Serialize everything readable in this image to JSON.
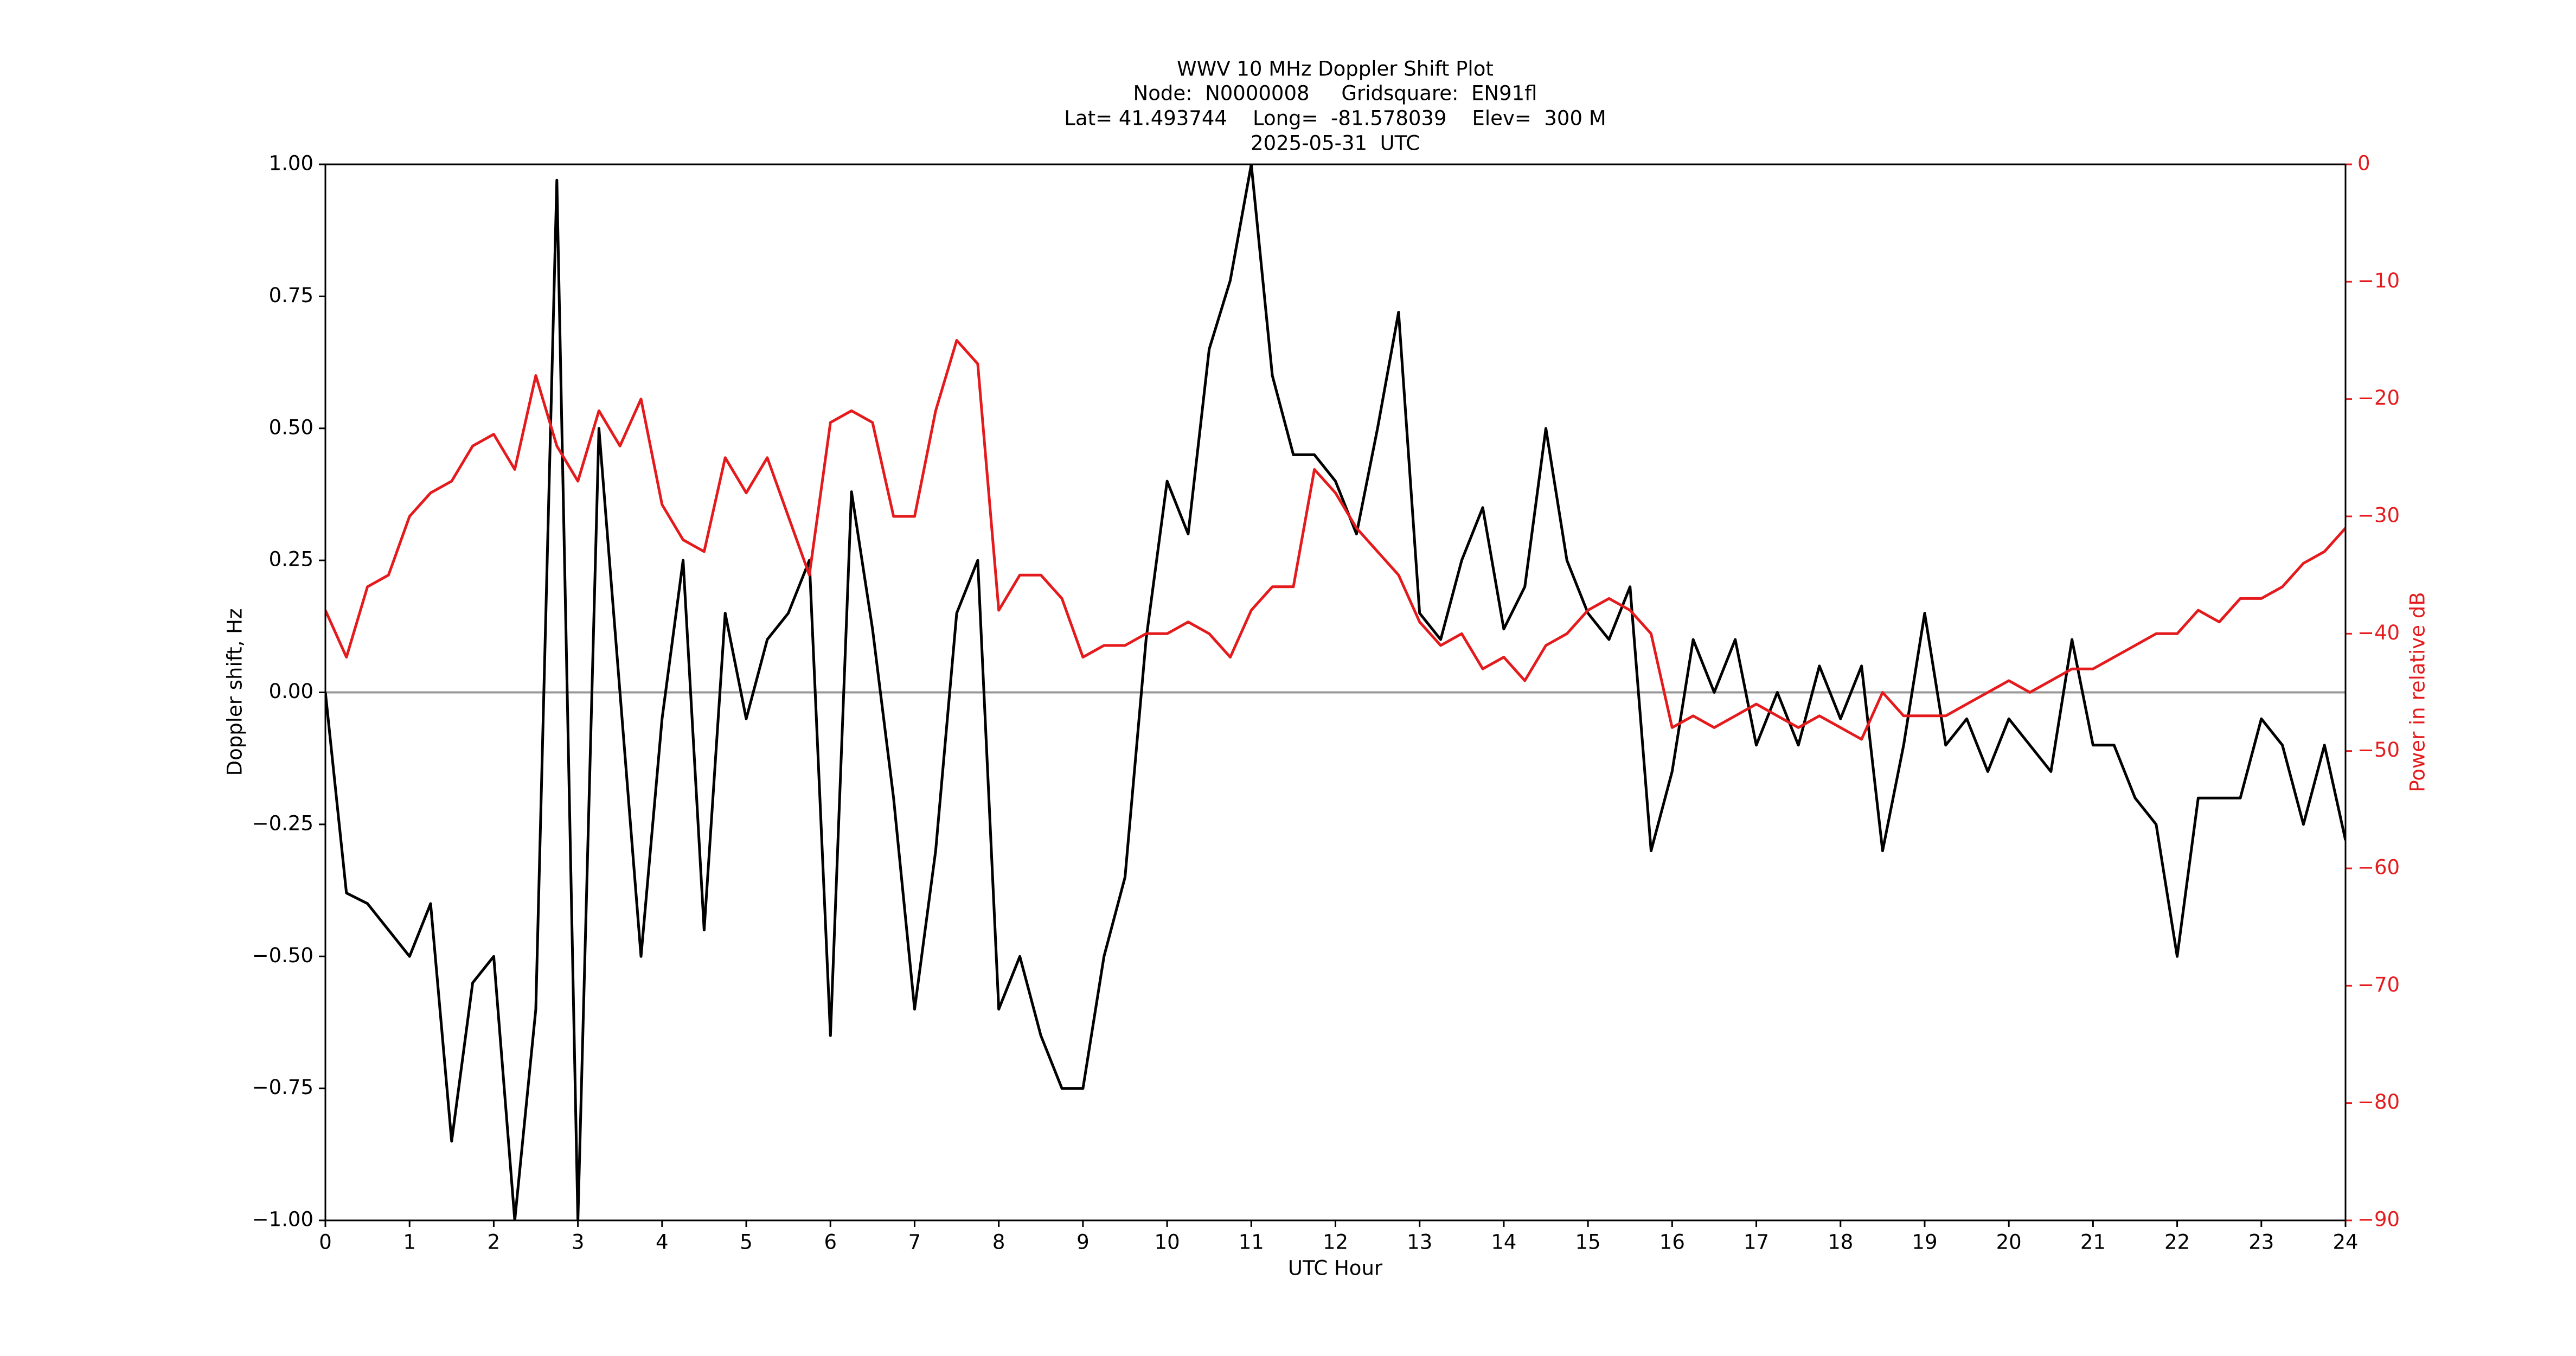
{
  "chart_data": {
    "type": "line",
    "title": [
      "WWV 10 MHz Doppler Shift Plot",
      "Node:  N0000008     Gridsquare:  EN91fl",
      "Lat= 41.493744    Long=  -81.578039    Elev=  300 M",
      "2025-05-31  UTC"
    ],
    "x_label": "UTC Hour",
    "y_label": "Doppler shift, Hz",
    "y2_label": "Power in relative dB",
    "x": [
      0,
      0.25,
      0.5,
      0.75,
      1,
      1.25,
      1.5,
      1.75,
      2,
      2.25,
      2.5,
      2.75,
      3,
      3.25,
      3.5,
      3.75,
      4,
      4.25,
      4.5,
      4.75,
      5,
      5.25,
      5.5,
      5.75,
      6,
      6.25,
      6.5,
      6.75,
      7,
      7.25,
      7.5,
      7.75,
      8,
      8.25,
      8.5,
      8.75,
      9,
      9.25,
      9.5,
      9.75,
      10,
      10.25,
      10.5,
      10.75,
      11,
      11.25,
      11.5,
      11.75,
      12,
      12.25,
      12.5,
      12.75,
      13,
      13.25,
      13.5,
      13.75,
      14,
      14.25,
      14.5,
      14.75,
      15,
      15.25,
      15.5,
      15.75,
      16,
      16.25,
      16.5,
      16.75,
      17,
      17.25,
      17.5,
      17.75,
      18,
      18.25,
      18.5,
      18.75,
      19,
      19.25,
      19.5,
      19.75,
      20,
      20.25,
      20.5,
      20.75,
      21,
      21.25,
      21.5,
      21.75,
      22,
      22.25,
      22.5,
      22.75,
      23,
      23.25,
      23.5,
      23.75,
      24
    ],
    "series": [
      {
        "name": "Doppler shift",
        "color": "#000000",
        "axis": "y",
        "values": [
          0.0,
          -0.38,
          -0.4,
          -0.45,
          -0.5,
          -0.4,
          -0.85,
          -0.55,
          -0.5,
          -1.0,
          -0.6,
          0.97,
          -1.0,
          0.5,
          0.0,
          -0.5,
          -0.05,
          0.25,
          -0.45,
          0.15,
          -0.05,
          0.1,
          0.15,
          0.25,
          -0.65,
          0.38,
          0.12,
          -0.2,
          -0.6,
          -0.3,
          0.15,
          0.25,
          -0.6,
          -0.5,
          -0.65,
          -0.75,
          -0.75,
          -0.5,
          -0.35,
          0.1,
          0.4,
          0.3,
          0.65,
          0.78,
          1.0,
          0.6,
          0.45,
          0.45,
          0.4,
          0.3,
          0.5,
          0.72,
          0.15,
          0.1,
          0.25,
          0.35,
          0.12,
          0.2,
          0.5,
          0.25,
          0.15,
          0.1,
          0.2,
          -0.3,
          -0.15,
          0.1,
          0.0,
          0.1,
          -0.1,
          0.0,
          -0.1,
          0.05,
          -0.05,
          0.05,
          -0.3,
          -0.1,
          0.15,
          -0.1,
          -0.05,
          -0.15,
          -0.05,
          -0.1,
          -0.15,
          0.1,
          -0.1,
          -0.1,
          -0.2,
          -0.25,
          -0.5,
          -0.2,
          -0.2,
          -0.2,
          -0.05,
          -0.1,
          -0.25,
          -0.1,
          -0.28
        ]
      },
      {
        "name": "Power",
        "color": "#e41a1c",
        "axis": "y2",
        "values": [
          -38,
          -42,
          -36,
          -35,
          -30,
          -28,
          -27,
          -24,
          -23,
          -26,
          -18,
          -24,
          -27,
          -21,
          -24,
          -20,
          -29,
          -32,
          -33,
          -25,
          -28,
          -25,
          -30,
          -35,
          -22,
          -21,
          -22,
          -30,
          -30,
          -21,
          -15,
          -17,
          -38,
          -35,
          -35,
          -37,
          -42,
          -41,
          -41,
          -40,
          -40,
          -39,
          -40,
          -42,
          -38,
          -36,
          -36,
          -26,
          -28,
          -31,
          -33,
          -35,
          -39,
          -41,
          -40,
          -43,
          -42,
          -44,
          -41,
          -40,
          -38,
          -37,
          -38,
          -40,
          -48,
          -47,
          -48,
          -47,
          -46,
          -47,
          -48,
          -47,
          -48,
          -49,
          -45,
          -47,
          -47,
          -47,
          -46,
          -45,
          -44,
          -45,
          -44,
          -43,
          -43,
          -42,
          -41,
          -40,
          -40,
          -38,
          -39,
          -37,
          -37,
          -36,
          -34,
          -33,
          -31
        ]
      }
    ],
    "xlim": [
      0,
      24
    ],
    "xticks": [
      0,
      1,
      2,
      3,
      4,
      5,
      6,
      7,
      8,
      9,
      10,
      11,
      12,
      13,
      14,
      15,
      16,
      17,
      18,
      19,
      20,
      21,
      22,
      23,
      24
    ],
    "ylim": [
      -1,
      1
    ],
    "yticks": [
      {
        "value": -1,
        "label": "−1.00"
      },
      {
        "value": -0.75,
        "label": "−0.75"
      },
      {
        "value": -0.5,
        "label": "−0.50"
      },
      {
        "value": -0.25,
        "label": "−0.25"
      },
      {
        "value": 0,
        "label": "0.00"
      },
      {
        "value": 0.25,
        "label": "0.25"
      },
      {
        "value": 0.5,
        "label": "0.50"
      },
      {
        "value": 0.75,
        "label": "0.75"
      },
      {
        "value": 1,
        "label": "1.00"
      }
    ],
    "y2lim": [
      -90,
      0
    ],
    "y2ticks": [
      {
        "value": -90,
        "label": "−90"
      },
      {
        "value": -80,
        "label": "−80"
      },
      {
        "value": -70,
        "label": "−70"
      },
      {
        "value": -60,
        "label": "−60"
      },
      {
        "value": -50,
        "label": "−50"
      },
      {
        "value": -40,
        "label": "−40"
      },
      {
        "value": -30,
        "label": "−30"
      },
      {
        "value": -20,
        "label": "−20"
      },
      {
        "value": -10,
        "label": "−10"
      },
      0
    ],
    "y2_color": "#e41a1c"
  }
}
